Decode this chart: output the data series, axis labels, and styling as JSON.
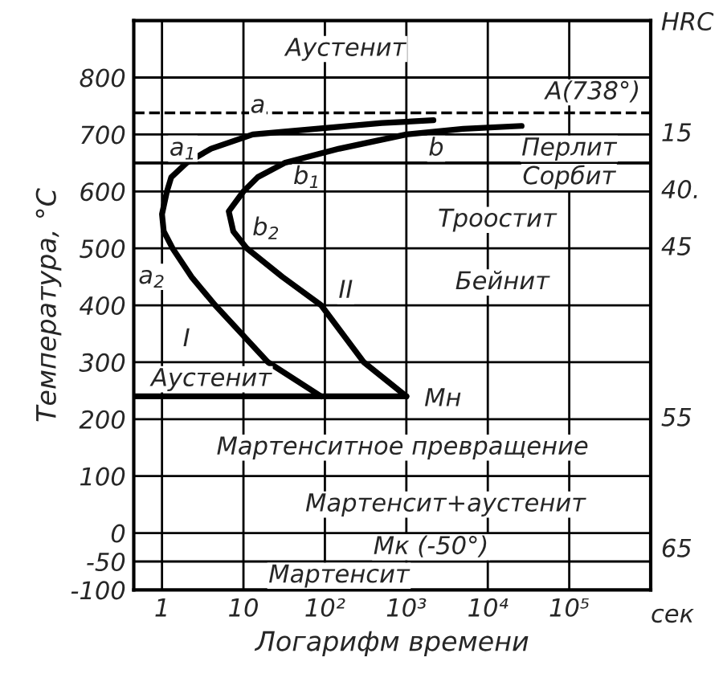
{
  "chart_data": {
    "type": "line",
    "xlabel": "Логарифм времени",
    "ylabel": "Температура, °С",
    "log": "x",
    "grid": true,
    "marker": "none",
    "line_style": "solid",
    "xlim": [
      0.45,
      1000000
    ],
    "ylim": [
      -100,
      900
    ],
    "xticks": [
      1,
      10,
      {
        "value": 100,
        "label": "10²"
      },
      {
        "value": 1000,
        "label": "10³"
      },
      {
        "value": 10000,
        "label": "10⁴"
      },
      {
        "value": 100000,
        "label": "10⁵"
      }
    ],
    "yticks": [
      -100,
      -50,
      0,
      100,
      200,
      300,
      400,
      500,
      600,
      700,
      800
    ],
    "series": [
      {
        "color": "#000000",
        "x": [
          2150,
          500,
          13,
          4,
          2,
          1.3,
          1.15,
          1.0,
          1.05,
          1.35,
          2.3,
          4.5,
          20,
          90
        ],
        "values": [
          725,
          720,
          700,
          675,
          650,
          625,
          600,
          560,
          530,
          500,
          450,
          400,
          300,
          240
        ]
      },
      {
        "color": "#000000",
        "x": [
          26000,
          5000,
          1000,
          150,
          32,
          15,
          10,
          6.6,
          7.5,
          11,
          30,
          90,
          300,
          1000
        ],
        "values": [
          715,
          710,
          700,
          675,
          650,
          625,
          600,
          565,
          530,
          500,
          450,
          400,
          300,
          240
        ]
      },
      {
        "color": "#000000",
        "x": [
          0.45,
          1000
        ],
        "values": [
          240,
          240
        ]
      }
    ],
    "ref_lines": [
      {
        "axis": "y",
        "value": 738,
        "label": "A(738°)",
        "line_style": "dashed",
        "color": "#000000"
      },
      {
        "axis": "y",
        "value": 650,
        "color": "#000000"
      }
    ],
    "annotations": [
      "Аустенит",
      "a",
      "a$_{1}$",
      "b",
      "b$_{1}$",
      "Перлит",
      "Сорбит",
      "b$_{2}$",
      "Троостит",
      "a$_{2}$",
      "II",
      "Бейнит",
      "I",
      "Аустенит",
      "Мн",
      "Мартенситное превращение",
      "Мартенсит+аустенит",
      "Мк (-50°)",
      "Мартенсит",
      "HRC",
      "15",
      "40.",
      "45",
      "55",
      "65",
      "сек"
    ]
  }
}
